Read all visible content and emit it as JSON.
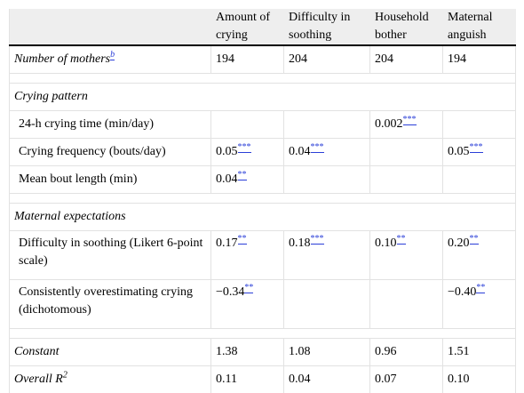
{
  "columns": [
    "",
    "Amount of crying",
    "Difficulty in soothing",
    "Household bother",
    "Maternal anguish"
  ],
  "mothers": {
    "label": "Number of mothers",
    "footnote": "b",
    "values": [
      "194",
      "204",
      "204",
      "194"
    ]
  },
  "sections": [
    {
      "title": "Crying pattern",
      "rows": [
        {
          "label": "24-h crying time (min/day)",
          "cells": [
            {
              "v": "",
              "s": ""
            },
            {
              "v": "",
              "s": ""
            },
            {
              "v": "0.002",
              "s": "***"
            },
            {
              "v": "",
              "s": ""
            }
          ]
        },
        {
          "label": "Crying frequency (bouts/day)",
          "cells": [
            {
              "v": "0.05",
              "s": "***"
            },
            {
              "v": "0.04",
              "s": "***"
            },
            {
              "v": "",
              "s": ""
            },
            {
              "v": "0.05",
              "s": "***"
            }
          ]
        },
        {
          "label": "Mean bout length (min)",
          "cells": [
            {
              "v": "0.04",
              "s": "**"
            },
            {
              "v": "",
              "s": ""
            },
            {
              "v": "",
              "s": ""
            },
            {
              "v": "",
              "s": ""
            }
          ]
        }
      ]
    },
    {
      "title": "Maternal expectations",
      "rows": [
        {
          "label": "Difficulty in soothing (Likert 6-point scale)",
          "cells": [
            {
              "v": "0.17",
              "s": "**"
            },
            {
              "v": "0.18",
              "s": "***"
            },
            {
              "v": "0.10",
              "s": "**"
            },
            {
              "v": "0.20",
              "s": "**"
            }
          ]
        },
        {
          "label": "Consistently overestimating crying (dichotomous)",
          "cells": [
            {
              "v": "−0.34",
              "s": "**"
            },
            {
              "v": "",
              "s": ""
            },
            {
              "v": "",
              "s": ""
            },
            {
              "v": "−0.40",
              "s": "**"
            }
          ]
        }
      ]
    }
  ],
  "constant": {
    "label": "Constant",
    "values": [
      "1.38",
      "1.08",
      "0.96",
      "1.51"
    ]
  },
  "r2": {
    "label": "Overall R",
    "sup": "2",
    "values": [
      "0.11",
      "0.04",
      "0.07",
      "0.10"
    ]
  },
  "colors": {
    "link": "#2b3fd8",
    "header_bg": "#eeeeee",
    "grid": "#e2e2e2"
  }
}
